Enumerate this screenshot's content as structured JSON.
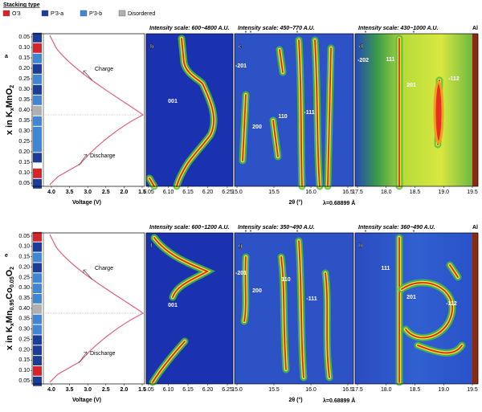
{
  "legend": {
    "title": "Stacking type",
    "items": [
      "O'3",
      "P'3-a",
      "P'3-b",
      "Disordered"
    ]
  },
  "rows": [
    {
      "voltage": {
        "label": "a",
        "y_label_parts": [
          "x in K",
          "x",
          "MnO",
          "2"
        ],
        "y_ticks": [
          "0.05",
          "0.10",
          "0.15",
          "0.20",
          "0.25",
          "0.30",
          "0.35",
          "0.40",
          "0.35",
          "0.30",
          "0.25",
          "0.20",
          "0.15",
          "0.10",
          "0.05"
        ],
        "charge": "Charge",
        "discharge": "Discharge",
        "x_ticks": [
          "4.0",
          "3.5",
          "3.0",
          "2.5",
          "2.0",
          "1.5"
        ],
        "x_label": "Voltage (V)"
      },
      "panels": [
        {
          "label": "b",
          "scale": "Intensity scale: 600~4800 A.U.",
          "peaks": [
            "001"
          ],
          "markers": [],
          "x_ticks": [
            "6.05",
            "6.10",
            "6.15",
            "6.20",
            "6.25"
          ]
        },
        {
          "label": "c",
          "scale": "Intensity scale: 450~770 A.U.",
          "peaks": [
            "-201",
            "200",
            "110",
            "-111"
          ],
          "markers": [
            "*",
            "*",
            "*"
          ],
          "x_ticks": [
            "15.0",
            "15.5",
            "16.0",
            "16.5"
          ]
        },
        {
          "label": "d",
          "scale": "Intensity scale: 430~1000 A.U.",
          "tag": "Al",
          "peaks": [
            "-202",
            "111",
            "201",
            "-112"
          ],
          "markers": [
            "*",
            "*"
          ],
          "x_ticks": [
            "17.5",
            "18.0",
            "18.5",
            "19.0",
            "19.5"
          ]
        }
      ],
      "x_label": "2θ (°)",
      "wavelength": "λ=0.68899 Å"
    },
    {
      "voltage": {
        "label": "e",
        "y_label_parts": [
          "x in K",
          "x",
          "Mn",
          "0.95",
          "Co",
          "0.05",
          "O",
          "2"
        ],
        "y_ticks": [
          "0.05",
          "0.10",
          "0.15",
          "0.20",
          "0.25",
          "0.30",
          "0.35",
          "0.40",
          "0.35",
          "0.30",
          "0.25",
          "0.20",
          "0.15",
          "0.10",
          "0.05"
        ],
        "charge": "Charge",
        "discharge": "Discharge",
        "x_ticks": [
          "4.0",
          "3.5",
          "3.0",
          "2.5",
          "2.0",
          "1.5"
        ],
        "x_label": "Voltage (V)"
      },
      "panels": [
        {
          "label": "f",
          "scale": "Intensity scale: 600~1200 A.U.",
          "peaks": [
            "001"
          ],
          "markers": [],
          "x_ticks": [
            "6.05",
            "6.10",
            "6.15",
            "6.20",
            "6.25"
          ]
        },
        {
          "label": "g",
          "scale": "Intensity scale: 350~490 A.U.",
          "peaks": [
            "-201",
            "200",
            "110",
            "-111"
          ],
          "markers": [
            "*",
            "*",
            "*"
          ],
          "x_ticks": [
            "15.0",
            "15.5",
            "16.0",
            "16.5"
          ]
        },
        {
          "label": "h",
          "scale": "Intensity scale: 360~490 A.U.",
          "tag": "Al",
          "peaks": [
            "111",
            "201",
            "-112"
          ],
          "markers": [
            "*",
            "*"
          ],
          "x_ticks": [
            "17.5",
            "18.0",
            "18.5",
            "19.0",
            "19.5"
          ]
        }
      ],
      "x_label": "2θ (°)",
      "wavelength": "λ=0.68899 Å"
    }
  ]
}
